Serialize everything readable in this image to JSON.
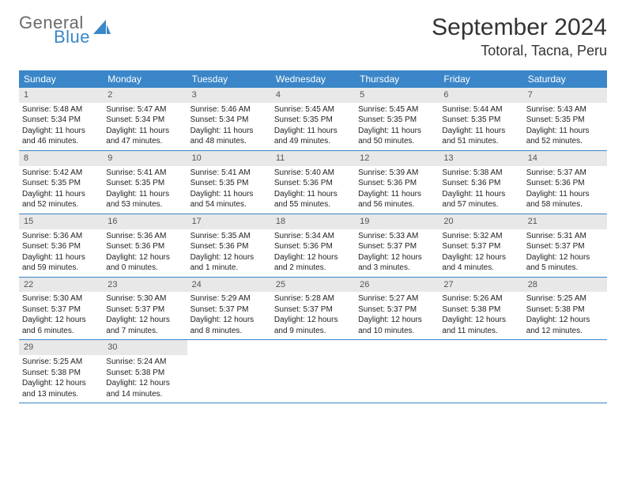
{
  "logo": {
    "word1": "General",
    "word2": "Blue",
    "word1_color": "#6b6b6b",
    "word2_color": "#3a86c8",
    "mark_color": "#3a86c8"
  },
  "header": {
    "month_title": "September 2024",
    "location": "Totoral, Tacna, Peru"
  },
  "colors": {
    "dow_bg": "#3a86c8",
    "dow_fg": "#ffffff",
    "daynum_bg": "#e8e8e8",
    "daynum_fg": "#555555",
    "week_border": "#3a86c8",
    "text": "#222222",
    "page_bg": "#ffffff"
  },
  "days_of_week": [
    "Sunday",
    "Monday",
    "Tuesday",
    "Wednesday",
    "Thursday",
    "Friday",
    "Saturday"
  ],
  "weeks": [
    [
      {
        "n": "1",
        "sunrise": "Sunrise: 5:48 AM",
        "sunset": "Sunset: 5:34 PM",
        "daylight": "Daylight: 11 hours and 46 minutes."
      },
      {
        "n": "2",
        "sunrise": "Sunrise: 5:47 AM",
        "sunset": "Sunset: 5:34 PM",
        "daylight": "Daylight: 11 hours and 47 minutes."
      },
      {
        "n": "3",
        "sunrise": "Sunrise: 5:46 AM",
        "sunset": "Sunset: 5:34 PM",
        "daylight": "Daylight: 11 hours and 48 minutes."
      },
      {
        "n": "4",
        "sunrise": "Sunrise: 5:45 AM",
        "sunset": "Sunset: 5:35 PM",
        "daylight": "Daylight: 11 hours and 49 minutes."
      },
      {
        "n": "5",
        "sunrise": "Sunrise: 5:45 AM",
        "sunset": "Sunset: 5:35 PM",
        "daylight": "Daylight: 11 hours and 50 minutes."
      },
      {
        "n": "6",
        "sunrise": "Sunrise: 5:44 AM",
        "sunset": "Sunset: 5:35 PM",
        "daylight": "Daylight: 11 hours and 51 minutes."
      },
      {
        "n": "7",
        "sunrise": "Sunrise: 5:43 AM",
        "sunset": "Sunset: 5:35 PM",
        "daylight": "Daylight: 11 hours and 52 minutes."
      }
    ],
    [
      {
        "n": "8",
        "sunrise": "Sunrise: 5:42 AM",
        "sunset": "Sunset: 5:35 PM",
        "daylight": "Daylight: 11 hours and 52 minutes."
      },
      {
        "n": "9",
        "sunrise": "Sunrise: 5:41 AM",
        "sunset": "Sunset: 5:35 PM",
        "daylight": "Daylight: 11 hours and 53 minutes."
      },
      {
        "n": "10",
        "sunrise": "Sunrise: 5:41 AM",
        "sunset": "Sunset: 5:35 PM",
        "daylight": "Daylight: 11 hours and 54 minutes."
      },
      {
        "n": "11",
        "sunrise": "Sunrise: 5:40 AM",
        "sunset": "Sunset: 5:36 PM",
        "daylight": "Daylight: 11 hours and 55 minutes."
      },
      {
        "n": "12",
        "sunrise": "Sunrise: 5:39 AM",
        "sunset": "Sunset: 5:36 PM",
        "daylight": "Daylight: 11 hours and 56 minutes."
      },
      {
        "n": "13",
        "sunrise": "Sunrise: 5:38 AM",
        "sunset": "Sunset: 5:36 PM",
        "daylight": "Daylight: 11 hours and 57 minutes."
      },
      {
        "n": "14",
        "sunrise": "Sunrise: 5:37 AM",
        "sunset": "Sunset: 5:36 PM",
        "daylight": "Daylight: 11 hours and 58 minutes."
      }
    ],
    [
      {
        "n": "15",
        "sunrise": "Sunrise: 5:36 AM",
        "sunset": "Sunset: 5:36 PM",
        "daylight": "Daylight: 11 hours and 59 minutes."
      },
      {
        "n": "16",
        "sunrise": "Sunrise: 5:36 AM",
        "sunset": "Sunset: 5:36 PM",
        "daylight": "Daylight: 12 hours and 0 minutes."
      },
      {
        "n": "17",
        "sunrise": "Sunrise: 5:35 AM",
        "sunset": "Sunset: 5:36 PM",
        "daylight": "Daylight: 12 hours and 1 minute."
      },
      {
        "n": "18",
        "sunrise": "Sunrise: 5:34 AM",
        "sunset": "Sunset: 5:36 PM",
        "daylight": "Daylight: 12 hours and 2 minutes."
      },
      {
        "n": "19",
        "sunrise": "Sunrise: 5:33 AM",
        "sunset": "Sunset: 5:37 PM",
        "daylight": "Daylight: 12 hours and 3 minutes."
      },
      {
        "n": "20",
        "sunrise": "Sunrise: 5:32 AM",
        "sunset": "Sunset: 5:37 PM",
        "daylight": "Daylight: 12 hours and 4 minutes."
      },
      {
        "n": "21",
        "sunrise": "Sunrise: 5:31 AM",
        "sunset": "Sunset: 5:37 PM",
        "daylight": "Daylight: 12 hours and 5 minutes."
      }
    ],
    [
      {
        "n": "22",
        "sunrise": "Sunrise: 5:30 AM",
        "sunset": "Sunset: 5:37 PM",
        "daylight": "Daylight: 12 hours and 6 minutes."
      },
      {
        "n": "23",
        "sunrise": "Sunrise: 5:30 AM",
        "sunset": "Sunset: 5:37 PM",
        "daylight": "Daylight: 12 hours and 7 minutes."
      },
      {
        "n": "24",
        "sunrise": "Sunrise: 5:29 AM",
        "sunset": "Sunset: 5:37 PM",
        "daylight": "Daylight: 12 hours and 8 minutes."
      },
      {
        "n": "25",
        "sunrise": "Sunrise: 5:28 AM",
        "sunset": "Sunset: 5:37 PM",
        "daylight": "Daylight: 12 hours and 9 minutes."
      },
      {
        "n": "26",
        "sunrise": "Sunrise: 5:27 AM",
        "sunset": "Sunset: 5:37 PM",
        "daylight": "Daylight: 12 hours and 10 minutes."
      },
      {
        "n": "27",
        "sunrise": "Sunrise: 5:26 AM",
        "sunset": "Sunset: 5:38 PM",
        "daylight": "Daylight: 12 hours and 11 minutes."
      },
      {
        "n": "28",
        "sunrise": "Sunrise: 5:25 AM",
        "sunset": "Sunset: 5:38 PM",
        "daylight": "Daylight: 12 hours and 12 minutes."
      }
    ],
    [
      {
        "n": "29",
        "sunrise": "Sunrise: 5:25 AM",
        "sunset": "Sunset: 5:38 PM",
        "daylight": "Daylight: 12 hours and 13 minutes."
      },
      {
        "n": "30",
        "sunrise": "Sunrise: 5:24 AM",
        "sunset": "Sunset: 5:38 PM",
        "daylight": "Daylight: 12 hours and 14 minutes."
      },
      null,
      null,
      null,
      null,
      null
    ]
  ]
}
